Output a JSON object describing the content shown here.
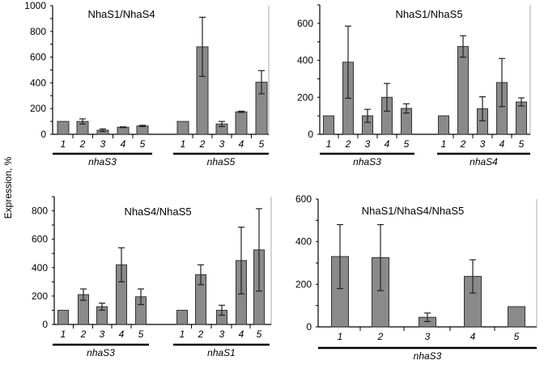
{
  "ylabel": "Expression, %",
  "colors": {
    "bar": "#8a8a8a",
    "axis": "#000000",
    "frame": "#aaaaaa"
  },
  "chart_data": [
    {
      "type": "bar",
      "title": "NhaS1/NhaS4",
      "ylim": [
        0,
        1000
      ],
      "yticks": [
        "0",
        "200",
        "400",
        "600",
        "800",
        "1000"
      ],
      "grid": false,
      "groups": [
        {
          "label": "nhaS3",
          "categories": [
            "1",
            "2",
            "3",
            "4",
            "5"
          ],
          "values": [
            100,
            100,
            32,
            55,
            65
          ],
          "errors": [
            0,
            20,
            10,
            3,
            5
          ]
        },
        {
          "label": "nhaS5",
          "categories": [
            "1",
            "2",
            "3",
            "4",
            "5"
          ],
          "values": [
            100,
            680,
            80,
            175,
            405
          ],
          "errors": [
            0,
            230,
            20,
            5,
            90
          ]
        }
      ]
    },
    {
      "type": "bar",
      "title": "NhaS1/NhaS5",
      "ylim": [
        0,
        700
      ],
      "yticks": [
        "0",
        "200",
        "400",
        "600"
      ],
      "grid": false,
      "groups": [
        {
          "label": "nhaS3",
          "categories": [
            "1",
            "2",
            "3",
            "4",
            "5"
          ],
          "values": [
            100,
            390,
            100,
            200,
            140
          ],
          "errors": [
            0,
            195,
            35,
            75,
            25
          ]
        },
        {
          "label": "nhaS4",
          "categories": [
            "1",
            "2",
            "3",
            "4",
            "5"
          ],
          "values": [
            100,
            475,
            138,
            280,
            175
          ],
          "errors": [
            0,
            58,
            65,
            130,
            22
          ]
        }
      ]
    },
    {
      "type": "bar",
      "title": "NhaS4/NhaS5",
      "ylim": [
        0,
        900
      ],
      "yticks": [
        "0",
        "200",
        "400",
        "600",
        "800"
      ],
      "grid": false,
      "groups": [
        {
          "label": "nhaS3",
          "categories": [
            "1",
            "2",
            "3",
            "4",
            "5"
          ],
          "values": [
            100,
            210,
            125,
            420,
            195
          ],
          "errors": [
            0,
            40,
            25,
            120,
            55
          ]
        },
        {
          "label": "nhaS1",
          "categories": [
            "1",
            "2",
            "3",
            "4",
            "5"
          ],
          "values": [
            100,
            350,
            100,
            450,
            525
          ],
          "errors": [
            0,
            70,
            35,
            235,
            290
          ]
        }
      ]
    },
    {
      "type": "bar",
      "title": "NhaS1/NhaS4/NhaS5",
      "ylim": [
        0,
        600
      ],
      "yticks": [
        "0",
        "200",
        "400",
        "600"
      ],
      "grid": false,
      "groups": [
        {
          "label": "nhaS3",
          "categories": [
            "1",
            "2",
            "3",
            "4",
            "5"
          ],
          "values": [
            330,
            325,
            45,
            237,
            95
          ],
          "errors": [
            150,
            155,
            20,
            78,
            0
          ]
        }
      ]
    }
  ]
}
